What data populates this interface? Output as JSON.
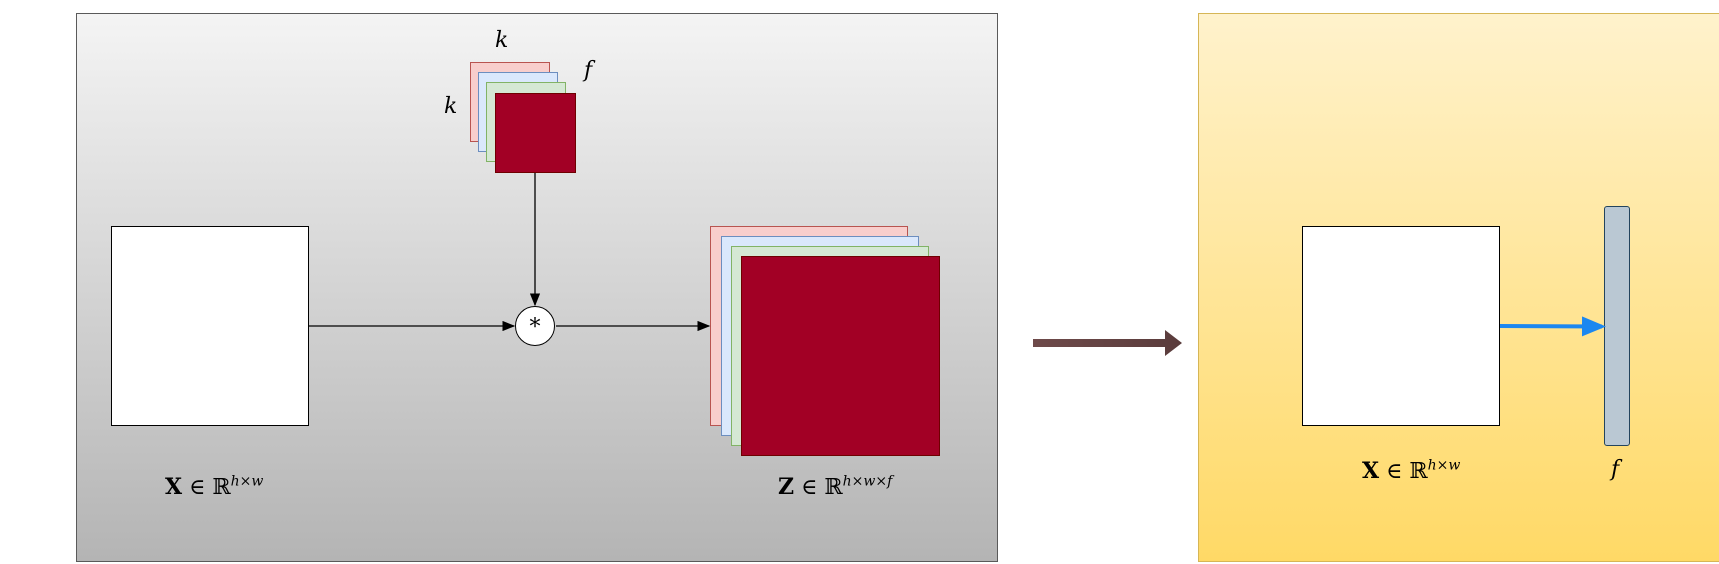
{
  "conv_block": {
    "filter_size_top": "k",
    "filter_size_left": "k",
    "filter_count": "f",
    "operator": "*",
    "input_label": {
      "symbol": "X",
      "set": "∈ ℝ",
      "exponent": "h×w"
    },
    "output_label": {
      "symbol": "Z",
      "set": "∈ ℝ",
      "exponent": "h×w×f"
    }
  },
  "dense_block": {
    "input_label": {
      "symbol": "X",
      "set": "∈ ℝ",
      "exponent": "h×w"
    },
    "output_label": "f"
  },
  "colors": {
    "filter_front": "#a20025",
    "pink_layer": "#f8cecc",
    "blue_layer": "#dae8fc",
    "green_layer": "#d5e8d4",
    "bar": "#bac8d3",
    "blue_arrow": "#1c87f0",
    "transition_arrow": "#5a3c3c"
  }
}
